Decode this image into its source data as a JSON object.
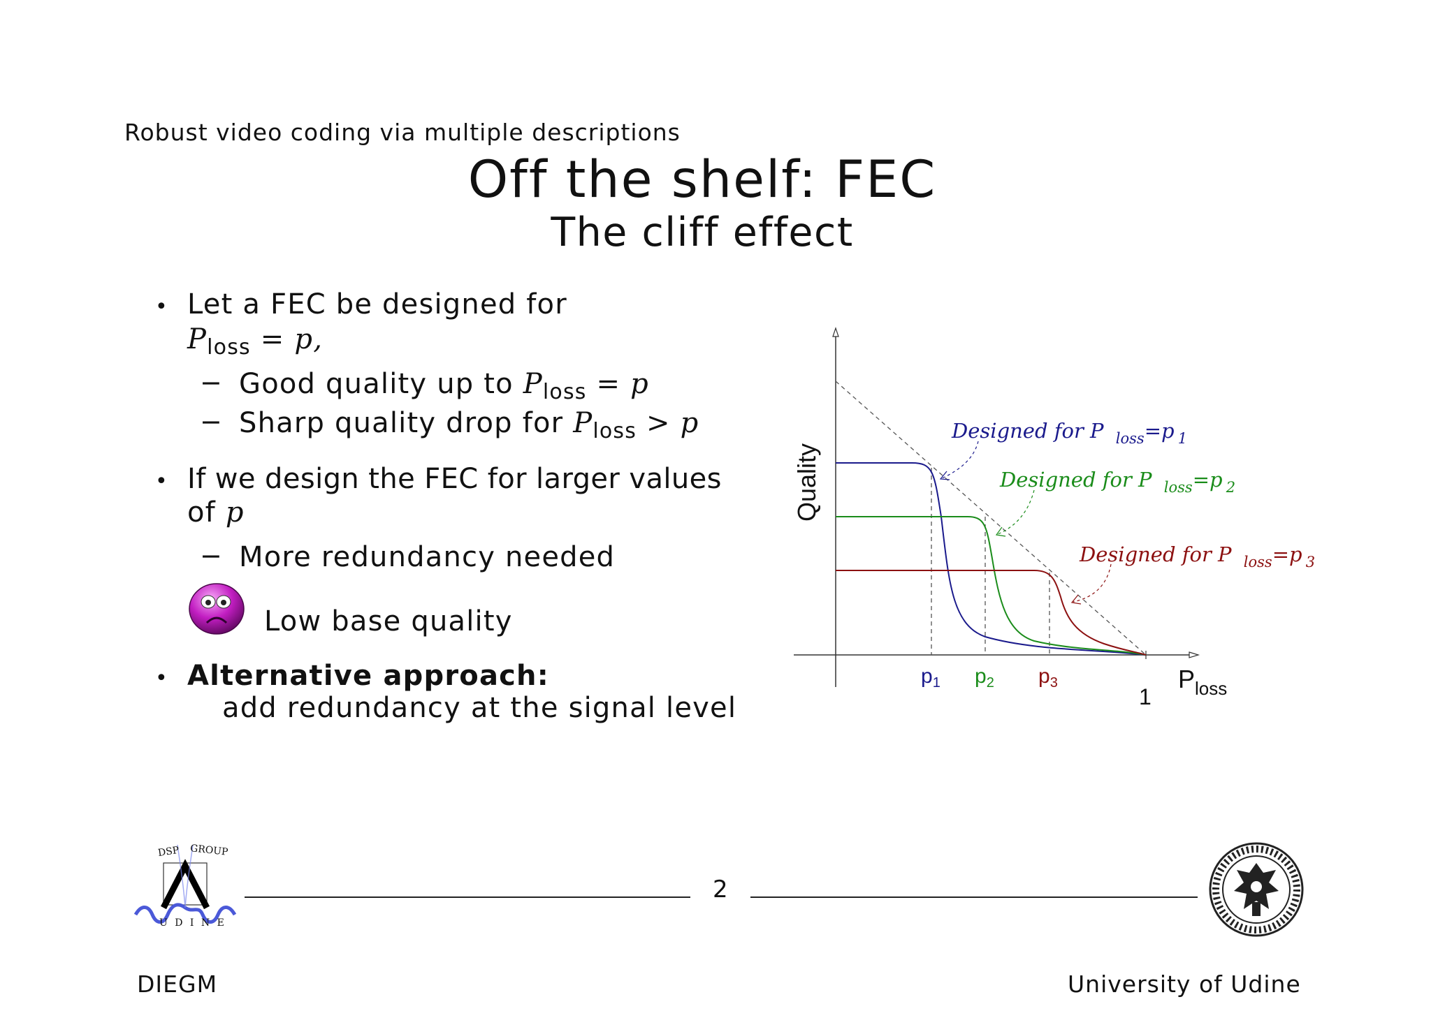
{
  "header": "Robust video coding via multiple descriptions",
  "title": "Off the shelf: FEC",
  "subtitle": "The cliff effect",
  "bullets": {
    "b1_line1": "Let a FEC be designed for",
    "b1_math_P": "P",
    "b1_math_sub": "loss",
    "b1_math_rest": "= p,",
    "b1_sub1_text": "Good quality up to ",
    "b1_sub1_rest": "= p",
    "b1_sub2_text": "Sharp quality drop for ",
    "b1_sub2_rest": "> p",
    "b2_line1": "If we design the FEC for larger values",
    "b2_line2_text": "of ",
    "b2_line2_var": "p",
    "b2_sub1": "More redundancy needed",
    "b2_sub2": "Low base quality",
    "b3_bold": "Alternative approach:",
    "b3_line2": "add redundancy at the signal level",
    "bullet_char": "•",
    "dash_char": "−"
  },
  "figure": {
    "ylabel": "Quality",
    "xlabel_P": "P",
    "xlabel_sub": "loss",
    "tick_one": "1",
    "p1": "p",
    "p1_sub": "1",
    "p2": "p",
    "p2_sub": "2",
    "p3": "p",
    "p3_sub": "3",
    "ann1": "Designed for P",
    "ann1_sub": "loss",
    "ann1_eq": "=p",
    "ann1_idx": "1",
    "ann2": "Designed for P",
    "ann2_sub": "loss",
    "ann2_eq": "=p",
    "ann2_idx": "2",
    "ann3": "Designed for P",
    "ann3_sub": "loss",
    "ann3_eq": "=p",
    "ann3_idx": "3",
    "colors": {
      "p1": "#1a1a8c",
      "p2": "#1a8c1a",
      "p3": "#8c1010"
    }
  },
  "footer": {
    "page_number": "2",
    "left": "DIEGM",
    "right": "University of Udine",
    "logo_text_top_left": "DSP",
    "logo_text_top_right": "GROUP",
    "logo_text_bottom": "U D I N E",
    "seal_text": "UNIVERSITAS STUDIORUM UTINENSIS"
  },
  "icons": {
    "sad_face": "sad-face-icon"
  }
}
